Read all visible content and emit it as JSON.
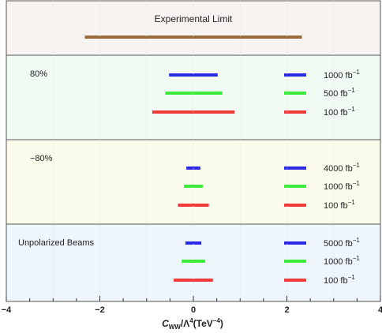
{
  "chart_data": {
    "type": "interval",
    "xlabel_main": "C",
    "xlabel_sub": "WW",
    "xlabel_mid": "/Λ",
    "xlabel_sup": "4",
    "xlabel_unit": "(TeV",
    "xlabel_unit_sup": "−4",
    "xlabel_close": ")",
    "xlim": [
      -4,
      4
    ],
    "xticks": [
      {
        "value": -4,
        "label": "−4"
      },
      {
        "value": -2,
        "label": "−2"
      },
      {
        "value": 0,
        "label": "0"
      },
      {
        "value": 2,
        "label": "2"
      },
      {
        "value": 4,
        "label": "4"
      }
    ],
    "panels": [
      {
        "id": "experimental",
        "title": "Experimental Limit",
        "bg": "#f7f3f1",
        "rows": [
          {
            "lo": -2.32,
            "hi": 2.32,
            "color": "#9b6a3a",
            "lumi": "",
            "unit": "",
            "sup": ""
          }
        ]
      },
      {
        "id": "pol-plus80",
        "title": "80%",
        "bg": "#f1fbf3",
        "rows": [
          {
            "lo": -0.52,
            "hi": 0.52,
            "color": "#2a2ae6",
            "lumi": "1000",
            "unit": "fb",
            "sup": "−1"
          },
          {
            "lo": -0.6,
            "hi": 0.62,
            "color": "#3cec3c",
            "lumi": "500",
            "unit": "fb",
            "sup": "−1"
          },
          {
            "lo": -0.88,
            "hi": 0.88,
            "color": "#f03a3a",
            "lumi": "100",
            "unit": "fb",
            "sup": "−1"
          }
        ]
      },
      {
        "id": "pol-minus80",
        "title": "−80%",
        "bg": "#fcfcec",
        "rows": [
          {
            "lo": -0.15,
            "hi": 0.15,
            "color": "#2a2ae6",
            "lumi": "4000",
            "unit": "fb",
            "sup": "−1"
          },
          {
            "lo": -0.2,
            "hi": 0.2,
            "color": "#3cec3c",
            "lumi": "1000",
            "unit": "fb",
            "sup": "−1"
          },
          {
            "lo": -0.33,
            "hi": 0.33,
            "color": "#f03a3a",
            "lumi": "100",
            "unit": "fb",
            "sup": "−1"
          }
        ]
      },
      {
        "id": "unpolarized",
        "title": "Unpolarized Beams",
        "bg": "#eef5fc",
        "rows": [
          {
            "lo": -0.17,
            "hi": 0.17,
            "color": "#2a2ae6",
            "lumi": "5000",
            "unit": "fb",
            "sup": "−1"
          },
          {
            "lo": -0.25,
            "hi": 0.25,
            "color": "#3cec3c",
            "lumi": "1000",
            "unit": "fb",
            "sup": "−1"
          },
          {
            "lo": -0.42,
            "hi": 0.42,
            "color": "#f03a3a",
            "lumi": "100",
            "unit": "fb",
            "sup": "−1"
          }
        ]
      }
    ]
  }
}
